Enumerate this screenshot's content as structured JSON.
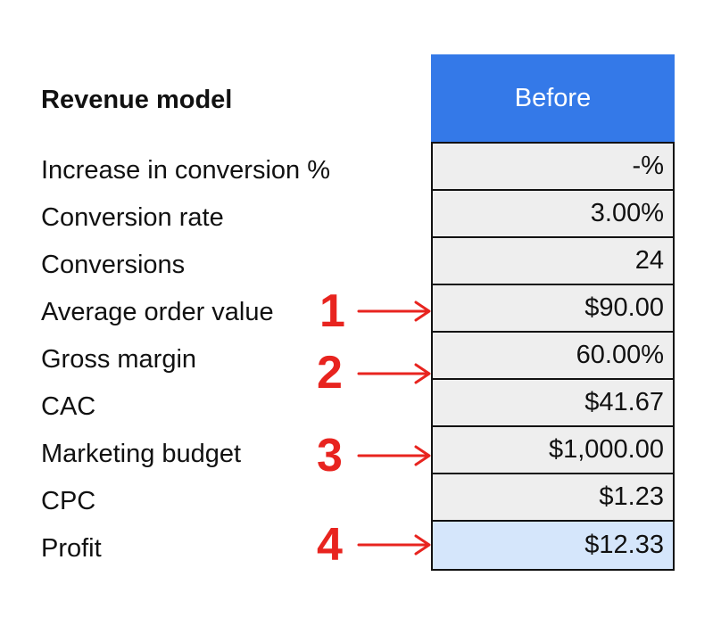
{
  "table": {
    "title": "Revenue model",
    "column_header": "Before",
    "rows": [
      {
        "label": "Increase in conversion %",
        "value": "-%"
      },
      {
        "label": "Conversion rate",
        "value": "3.00%"
      },
      {
        "label": "Conversions",
        "value": "24"
      },
      {
        "label": "Average order value",
        "value": "$90.00"
      },
      {
        "label": "Gross margin",
        "value": "60.00%"
      },
      {
        "label": "CAC",
        "value": "$41.67"
      },
      {
        "label": "Marketing budget",
        "value": "$1,000.00"
      },
      {
        "label": "CPC",
        "value": "$1.23"
      },
      {
        "label": "Profit",
        "value": "$12.33"
      }
    ]
  },
  "annotations": [
    {
      "number": "1",
      "target_row": "Average order value"
    },
    {
      "number": "2",
      "target_row": "Gross margin"
    },
    {
      "number": "3",
      "target_row": "Marketing budget"
    },
    {
      "number": "4",
      "target_row": "Profit"
    }
  ],
  "colors": {
    "header_bg": "#3479e8",
    "cell_bg": "#eeeeee",
    "highlight_bg": "#d5e6fb",
    "annotation": "#e8241f"
  }
}
